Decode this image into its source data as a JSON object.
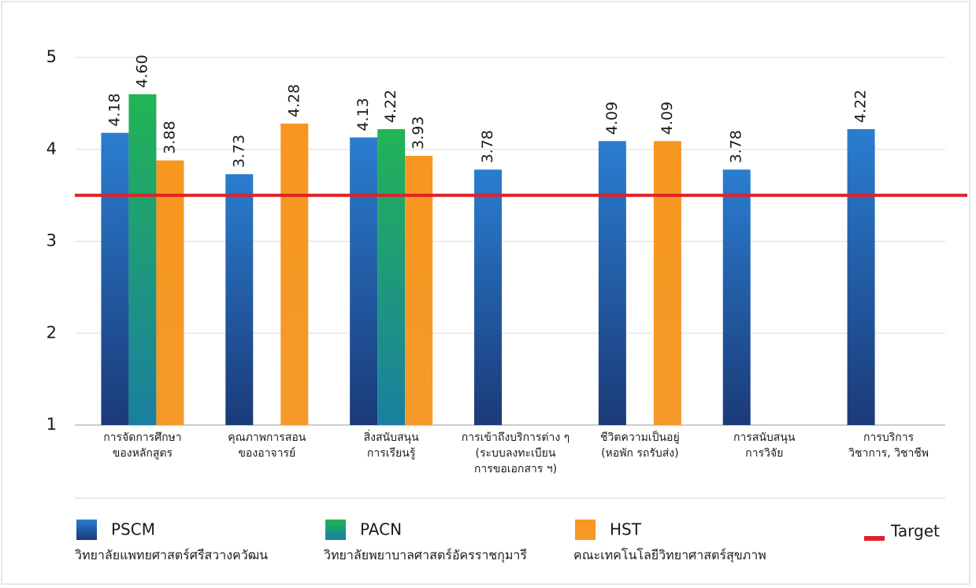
{
  "chart_data": {
    "type": "bar",
    "categories": [
      [
        "การจัดการศึกษา",
        "ของหลักสูตร"
      ],
      [
        "คุณภาพการสอน",
        "ของอาจารย์"
      ],
      [
        "สิ่งสนับสนุน",
        "การเรียนรู้"
      ],
      [
        "การเข้าถึงบริการต่าง ๆ",
        "(ระบบลงทะเบียน",
        "การขอเอกสาร ฯ)"
      ],
      [
        "ชีวิตความเป็นอยู่",
        "(หอพัก รถรับส่ง)"
      ],
      [
        "การสนับสนุน",
        "การวิจัย"
      ],
      [
        "การบริการ",
        "วิชาการ, วิชาชีพ"
      ]
    ],
    "series": [
      {
        "name": "PSCM",
        "description": "วิทยาลัยแพทยศาสตร์ศรีสวางควัฒน",
        "color": "#2570c0",
        "values": [
          4.18,
          3.73,
          4.13,
          3.78,
          4.09,
          3.78,
          4.22
        ],
        "value_labels": [
          "4.18",
          "3.73",
          "4.13",
          "3.78",
          "4.09",
          "3.78",
          "4.22"
        ]
      },
      {
        "name": "PACN",
        "description": "วิทยาลัยพยาบาลศาสตร์อัครราชกุมารี",
        "color": "#1fae55",
        "values": [
          4.6,
          null,
          4.22,
          null,
          null,
          null,
          null
        ],
        "value_labels": [
          "4.60",
          null,
          "4.22",
          null,
          null,
          null,
          null
        ]
      },
      {
        "name": "HST",
        "description": "คณะเทคโนโลยีวิทยาศาสตร์สุขภาพ",
        "color": "#f7941d",
        "values": [
          3.88,
          4.28,
          3.93,
          null,
          4.09,
          null,
          null
        ],
        "value_labels": [
          "3.88",
          "4.28",
          "3.93",
          null,
          "4.09",
          null,
          null
        ]
      }
    ],
    "target": {
      "name": "Target",
      "value": 3.5,
      "color": "#e3202a"
    },
    "ylim": [
      1,
      5
    ],
    "yticks": [
      1,
      2,
      3,
      4,
      5
    ],
    "grid": true
  }
}
